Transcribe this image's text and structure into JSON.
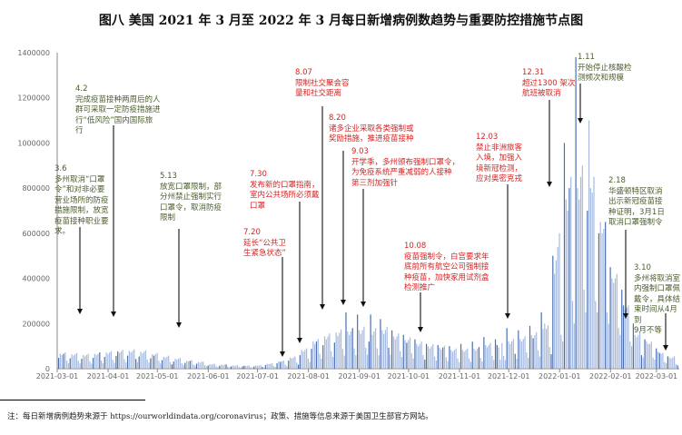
{
  "chart_data": {
    "type": "bar",
    "title": "图八 美国 2021 年 3 月至 2022 年 3 月每日新增病例数趋势与重要防控措施节点图",
    "xlabel": "",
    "ylabel": "",
    "start_date": "2021-03-01",
    "ylim": [
      0,
      1400000
    ],
    "yticks": [
      "0",
      "200000",
      "400000",
      "600000",
      "800000",
      "1000000",
      "1200000",
      "1400000"
    ],
    "xticks": [
      "2021-03-01",
      "2021-04-01",
      "2021-05-01",
      "2021-06-01",
      "2021-07-01",
      "2021-08-01",
      "2021-09-01",
      "2021-10-01",
      "2021-11-01",
      "2021-12-01",
      "2022-01-01",
      "2022-02-01",
      "2022-03-01"
    ],
    "xtick_days": [
      0,
      31,
      61,
      92,
      122,
      153,
      184,
      214,
      245,
      275,
      306,
      337,
      365
    ],
    "colors": {
      "bar_light": "#a7bbdf",
      "bar_dark": "#4a6fb2",
      "red": "#d42424",
      "green": "#4b5e2c"
    },
    "values": [
      48000,
      66000,
      60000,
      66000,
      72000,
      36000,
      24000,
      46000,
      64000,
      58000,
      64000,
      70000,
      35000,
      23000,
      44000,
      61000,
      55000,
      61000,
      66000,
      33000,
      22000,
      48000,
      66000,
      60000,
      66000,
      72000,
      36000,
      24000,
      52000,
      72000,
      65000,
      72000,
      78000,
      39000,
      26000,
      56000,
      77000,
      70000,
      77000,
      84000,
      42000,
      28000,
      58000,
      79000,
      72000,
      79000,
      86000,
      43000,
      29000,
      54000,
      75000,
      68000,
      75000,
      82000,
      41000,
      27000,
      46000,
      64000,
      58000,
      64000,
      70000,
      35000,
      23000,
      38000,
      53000,
      48000,
      53000,
      58000,
      29000,
      19000,
      32000,
      44000,
      40000,
      44000,
      48000,
      24000,
      16000,
      26000,
      35000,
      32000,
      35000,
      38000,
      19000,
      13000,
      22000,
      30000,
      27000,
      30000,
      32000,
      16000,
      11000,
      14000,
      20000,
      18000,
      20000,
      22000,
      11000,
      7000,
      13000,
      18000,
      16000,
      18000,
      19000,
      10000,
      6000,
      10000,
      14000,
      13000,
      14000,
      16000,
      8000,
      5000,
      10000,
      13000,
      12000,
      13000,
      14000,
      7000,
      5000,
      10000,
      14000,
      13000,
      14000,
      16000,
      8000,
      5000,
      16000,
      22000,
      20000,
      22000,
      24000,
      12000,
      8000,
      24000,
      33000,
      30000,
      33000,
      36000,
      18000,
      12000,
      36000,
      50000,
      45000,
      50000,
      54000,
      27000,
      18000,
      60000,
      83000,
      75000,
      83000,
      90000,
      45000,
      30000,
      88000,
      121000,
      110000,
      121000,
      132000,
      66000,
      44000,
      104000,
      143000,
      130000,
      143000,
      156000,
      78000,
      52000,
      116000,
      160000,
      145000,
      160000,
      174000,
      87000,
      58000,
      250000,
      165000,
      150000,
      165000,
      180000,
      90000,
      60000,
      240000,
      171000,
      155000,
      171000,
      186000,
      93000,
      62000,
      120000,
      240000,
      150000,
      165000,
      180000,
      90000,
      60000,
      220000,
      171000,
      155000,
      171000,
      186000,
      93000,
      62000,
      170000,
      143000,
      130000,
      143000,
      156000,
      78000,
      52000,
      150000,
      127000,
      115000,
      127000,
      138000,
      69000,
      46000,
      130000,
      110000,
      100000,
      110000,
      120000,
      60000,
      40000,
      110000,
      99000,
      90000,
      99000,
      108000,
      54000,
      36000,
      105000,
      94000,
      85000,
      94000,
      102000,
      51000,
      34000,
      100000,
      83000,
      75000,
      83000,
      90000,
      45000,
      30000,
      110000,
      83000,
      75000,
      83000,
      90000,
      45000,
      30000,
      120000,
      88000,
      80000,
      88000,
      96000,
      48000,
      32000,
      140000,
      105000,
      95000,
      105000,
      114000,
      57000,
      38000,
      130000,
      105000,
      95000,
      40000,
      114000,
      57000,
      38000,
      180000,
      121000,
      110000,
      121000,
      132000,
      66000,
      44000,
      170000,
      132000,
      120000,
      132000,
      144000,
      72000,
      48000,
      190000,
      149000,
      135000,
      149000,
      162000,
      81000,
      54000,
      250000,
      176000,
      200000,
      176000,
      192000,
      96000,
      64000,
      500000,
      420000,
      480000,
      540000,
      600000,
      150000,
      120000,
      1000000,
      750000,
      700000,
      800000,
      850000,
      300000,
      200000,
      1380000,
      800000,
      750000,
      850000,
      900000,
      350000,
      250000,
      700000,
      1100000,
      800000,
      780000,
      850000,
      300000,
      250000,
      600000,
      650000,
      600000,
      620000,
      650000,
      250000,
      200000,
      450000,
      400000,
      380000,
      400000,
      420000,
      180000,
      150000,
      350000,
      280000,
      260000,
      270000,
      280000,
      120000,
      100000,
      200000,
      150000,
      140000,
      150000,
      160000,
      60000,
      50000,
      130000,
      120000,
      110000,
      110000,
      120000,
      50000,
      40000,
      90000,
      75000,
      70000,
      65000,
      70000,
      30000,
      25000,
      55000,
      50000,
      45000,
      50000,
      55000,
      20000,
      15000
    ],
    "annotations": [
      {
        "date": "3.6",
        "text": "多州取消“口罩\n令”和对非必要\n营业场所的防疫\n措施限制，放宽\n疫苗接种职业要\n求。"
      },
      {
        "date": "4.2",
        "text": "完成疫苗接种两周后的人\n群可采取一定防疫措施进\n行“低风险”国内国际旅\n行"
      },
      {
        "date": "5.13",
        "text": "放宽口罩限制，部\n分州禁止强制实行\n口罩令，取消防疫\n限制"
      },
      {
        "date": "7.20",
        "text": "延长“公共卫\n生紧急状态”"
      },
      {
        "date": "7.30",
        "text": "发布新的口罩指南，\n室内公共场所必须戴\n口罩"
      },
      {
        "date": "8.07",
        "text": "限制社交聚会容\n量和社交距离"
      },
      {
        "date": "8.20",
        "text": "诸多企业采取各类强制或\n奖励措施，推进疫苗接种"
      },
      {
        "date": "9.03",
        "text": "开学季，多州颁布强制口罩令，\n为免疫系统严重减弱的人接种\n第三剂加强针"
      },
      {
        "date": "10.08",
        "text": "疫苗强制令，白宫要求年\n底前所有航空公司强制接\n种疫苗，加快家用试剂盒\n检测推广"
      },
      {
        "date": "12.03",
        "text": "禁止非洲旅客\n入境，加强入\n境新冠检测，\n应对奥密克戎"
      },
      {
        "date": "12.31",
        "text": "超过1300 架次\n航班被取消"
      },
      {
        "date": "1.11",
        "text": "开始停止核酸检\n测频次和规模"
      },
      {
        "date": "2.18",
        "text": "华盛顿特区取消\n出示新冠疫苗接\n种证明，3月1日\n取消口罩强制令"
      },
      {
        "date": "3.10",
        "text": "多州将取消室\n内强制口罩佩\n戴令，具体结\n束时间从4月到\n9月不等"
      }
    ]
  },
  "footnote": "注：每日新增病例趋势来源于 https://ourworldindata.org/coronavirus；政策、措施等信息来源于美国卫生部官方网站。"
}
